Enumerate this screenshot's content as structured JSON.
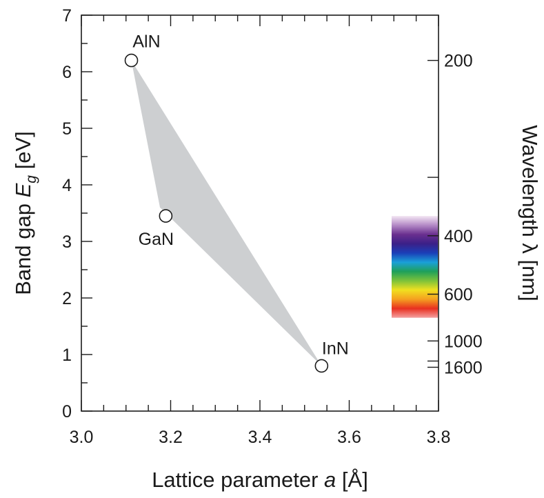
{
  "chart_data": {
    "type": "scatter",
    "x_axis": {
      "label_prefix": "Lattice parameter ",
      "label_var": "a",
      "label_suffix": " [Å]",
      "range": [
        3.0,
        3.8
      ],
      "ticks": [
        "3.0",
        "3.2",
        "3.4",
        "3.6",
        "3.8"
      ],
      "tick_values": [
        3.0,
        3.2,
        3.4,
        3.6,
        3.8
      ],
      "minor_step": 0.05
    },
    "y_axis": {
      "label_prefix": "Band gap ",
      "label_var": "E",
      "label_sub": "g",
      "label_suffix": " [eV]",
      "range": [
        0,
        7
      ],
      "ticks": [
        "0",
        "1",
        "2",
        "3",
        "4",
        "5",
        "6",
        "7"
      ],
      "tick_values": [
        0,
        1,
        2,
        3,
        4,
        5,
        6,
        7
      ],
      "minor_step": 0.5
    },
    "y2_axis": {
      "label": "Wavelength λ [nm]",
      "ticks": [
        {
          "energy": 6.2,
          "label": "200"
        },
        {
          "energy": 4.133,
          "label": ""
        },
        {
          "energy": 3.1,
          "label": "400"
        },
        {
          "energy": 2.067,
          "label": "600"
        },
        {
          "energy": 1.24,
          "label": "1000"
        },
        {
          "energy": 0.885,
          "label": ""
        },
        {
          "energy": 0.775,
          "label": "1600"
        }
      ]
    },
    "points": [
      {
        "label": "AlN",
        "x": 3.112,
        "y": 6.2
      },
      {
        "label": "GaN",
        "x": 3.189,
        "y": 3.45
      },
      {
        "label": "InN",
        "x": 3.538,
        "y": 0.8
      }
    ],
    "region": [
      [
        3.112,
        6.2
      ],
      [
        3.176,
        3.6
      ],
      [
        3.538,
        0.8
      ]
    ],
    "spectrum_bar": {
      "energy_top": 3.45,
      "energy_bottom": 1.65,
      "colors": [
        "#f3e6f3",
        "#b48ac6",
        "#6a2f8f",
        "#3b2088",
        "#1a3fb8",
        "#1aa0d8",
        "#1fa05a",
        "#7cc23a",
        "#f0e020",
        "#f5a020",
        "#e83020",
        "#f4a0a0"
      ]
    },
    "colors": {
      "region_fill": "#cdcfd1",
      "axis": "#1a1a1a",
      "marker_fill": "#ffffff"
    },
    "grid": false
  }
}
